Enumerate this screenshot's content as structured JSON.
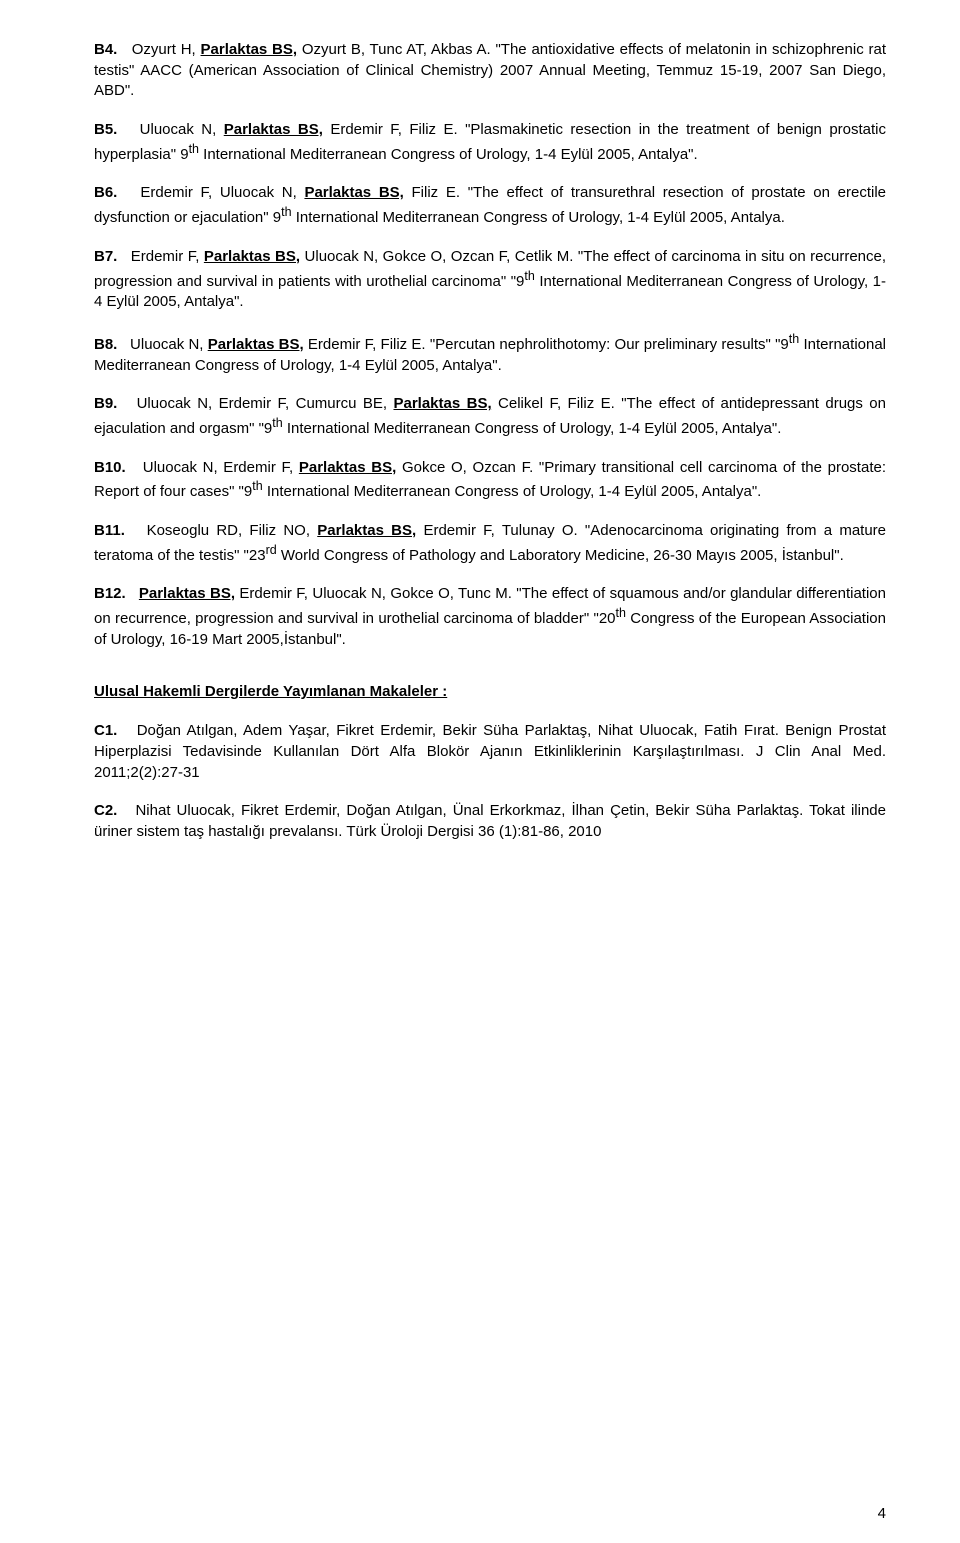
{
  "entries": [
    {
      "label": "B4.",
      "label_bold": true,
      "segments": [
        {
          "text": "Ozyurt H, "
        },
        {
          "text": "Parlaktas BS,",
          "bold": true,
          "underline": true
        },
        {
          "text": " Ozyurt B, Tunc AT, Akbas A. \"The antioxidative effects of melatonin in schizophrenic rat testis\" AACC (American Association of Clinical Chemistry) 2007 Annual Meeting, Temmuz 15-19, 2007 San Diego, ABD\"."
        }
      ]
    },
    {
      "label": "B5.",
      "label_bold": true,
      "segments": [
        {
          "text": "Uluocak N, "
        },
        {
          "text": "Parlaktas BS,",
          "bold": true,
          "underline": true
        },
        {
          "text": " Erdemir F, Filiz E. \"Plasmakinetic resection in the treatment of benign prostatic hyperplasia\" 9"
        },
        {
          "text": "th",
          "sup": true
        },
        {
          "text": " International Mediterranean Congress of Urology, 1-4 Eylül 2005, Antalya\"."
        }
      ]
    },
    {
      "label": "B6.",
      "label_bold": true,
      "segments": [
        {
          "text": "Erdemir F, Uluocak N, "
        },
        {
          "text": "Parlaktas BS,",
          "bold": true,
          "underline": true
        },
        {
          "text": " Filiz E. \"The effect of transurethral resection of prostate on erectile dysfunction or ejaculation\" 9"
        },
        {
          "text": "th",
          "sup": true
        },
        {
          "text": " International Mediterranean Congress of Urology, 1-4 Eylül 2005, Antalya."
        }
      ]
    },
    {
      "label": "B7.",
      "label_bold": true,
      "segments": [
        {
          "text": "Erdemir F, "
        },
        {
          "text": "Parlaktas BS,",
          "bold": true,
          "underline": true
        },
        {
          "text": " Uluocak N, Gokce O, Ozcan F, Cetlik M. \"The effect of carcinoma in situ on recurrence, progression and survival in patients with urothelial carcinoma\" \"9"
        },
        {
          "text": "th",
          "sup": true
        },
        {
          "text": " International Mediterranean Congress of Urology, 1-4 Eylül 2005, Antalya\"."
        }
      ]
    },
    {
      "label": "B8.",
      "label_bold": true,
      "segments": [
        {
          "text": "Uluocak N, "
        },
        {
          "text": "Parlaktas BS,",
          "bold": true,
          "underline": true
        },
        {
          "text": " Erdemir F, Filiz E. \"Percutan nephrolithotomy: Our preliminary results\" \"9"
        },
        {
          "text": "th",
          "sup": true
        },
        {
          "text": " International Mediterranean Congress of Urology, 1-4 Eylül 2005, Antalya\"."
        }
      ]
    },
    {
      "label": "B9.",
      "label_bold": true,
      "segments": [
        {
          "text": "Uluocak N, Erdemir F, Cumurcu BE, "
        },
        {
          "text": "Parlaktas BS,",
          "bold": true,
          "underline": true
        },
        {
          "text": " Celikel F, Filiz E. \"The effect of antidepressant drugs on ejaculation and orgasm\" \"9"
        },
        {
          "text": "th",
          "sup": true
        },
        {
          "text": " International Mediterranean Congress of Urology, 1-4 Eylül 2005, Antalya\"."
        }
      ]
    },
    {
      "label": "B10.",
      "label_bold": true,
      "segments": [
        {
          "text": "Uluocak N, Erdemir F, "
        },
        {
          "text": "Parlaktas BS,",
          "bold": true,
          "underline": true
        },
        {
          "text": " Gokce O, Ozcan F. \"Primary transitional cell carcinoma of the prostate: Report of four cases\" \"9"
        },
        {
          "text": "th",
          "sup": true
        },
        {
          "text": " International Mediterranean Congress of Urology, 1-4 Eylül 2005, Antalya\"."
        }
      ]
    },
    {
      "label": "B11.",
      "label_bold": true,
      "segments": [
        {
          "text": "Koseoglu RD, Filiz NO, "
        },
        {
          "text": "Parlaktas BS,",
          "bold": true,
          "underline": true
        },
        {
          "text": " Erdemir F, Tulunay O. \"Adenocarcinoma originating from a mature teratoma of the testis\" \"23"
        },
        {
          "text": "rd",
          "sup": true
        },
        {
          "text": " World Congress of Pathology and Laboratory Medicine, 26-30 Mayıs 2005, İstanbul\"."
        }
      ]
    },
    {
      "label": "B12.",
      "label_bold": true,
      "segments": [
        {
          "text": "Parlaktas BS,",
          "bold": true,
          "underline": true
        },
        {
          "text": " Erdemir F, Uluocak N, Gokce O, Tunc M. \"The effect of squamous and/or glandular differentiation on recurrence, progression and survival in urothelial carcinoma of bladder\" \"20"
        },
        {
          "text": "th",
          "sup": true
        },
        {
          "text": " Congress of the European Association of Urology, 16-19 Mart 2005,İstanbul\"."
        }
      ]
    }
  ],
  "section_heading": "Ulusal Hakemli Dergilerde Yayımlanan Makaleler :",
  "c_entries": [
    {
      "label": "C1.",
      "label_bold": true,
      "segments": [
        {
          "text": "Doğan Atılgan, Adem Yaşar, Fikret Erdemir, Bekir Süha Parlaktaş, Nihat    Uluocak, Fatih Fırat. Benign Prostat Hiperplazisi Tedavisinde Kullanılan Dört Alfa Blokör Ajanın Etkinliklerinin Karşılaştırılması. J Clin Anal Med. 2011;2(2):27-31"
        }
      ]
    },
    {
      "label": "C2.",
      "label_bold": true,
      "segments": [
        {
          "text": "Nihat Uluocak, Fikret Erdemir, Doğan Atılgan, Ünal Erkorkmaz, İlhan Çetin, Bekir Süha Parlaktaş. Tokat ilinde üriner sistem taş hastalığı prevalansı. Türk Üroloji Dergisi 36 (1):81-86, 2010"
        }
      ]
    }
  ],
  "page_number": "4",
  "colors": {
    "text": "#000000",
    "background": "#ffffff"
  },
  "typography": {
    "font_family": "Verdana",
    "body_size_pt": 11,
    "line_height": 1.38
  }
}
